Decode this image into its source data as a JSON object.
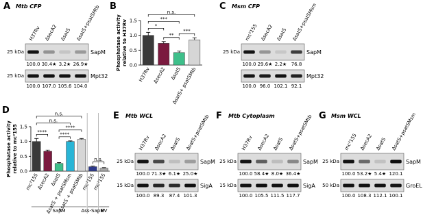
{
  "chart_data": [
    {
      "type": "bar",
      "panel": "B",
      "ylabel": [
        "Phosphatase activity",
        "relative to H37Rv"
      ],
      "categories": [
        "H37Rv",
        "ΔsecA2",
        "ΔsatS",
        "ΔsatS+ psatSMtb"
      ],
      "values": [
        1.0,
        0.73,
        0.42,
        0.85
      ],
      "errors": [
        0.1,
        0.06,
        0.05,
        0.07
      ],
      "colors": [
        "#3a3a3a",
        "#7b1a3f",
        "#3ebf8a",
        "#d6d6d6"
      ],
      "ylim": [
        0,
        1.5
      ],
      "yticks": [
        {
          "value": 0,
          "label": "0.0"
        },
        {
          "value": 0.5,
          "label": "0.5"
        },
        {
          "value": 1,
          "label": "1.0"
        },
        {
          "value": 1.5,
          "label": "1.5"
        }
      ],
      "significance": [
        {
          "text": "n.s.",
          "between": [
            0,
            3
          ]
        },
        {
          "text": "***",
          "between": [
            0,
            2
          ]
        },
        {
          "text": "*",
          "between": [
            0,
            1
          ]
        },
        {
          "text": "**",
          "between": [
            1,
            2
          ]
        },
        {
          "text": "***",
          "between": [
            2,
            3
          ]
        }
      ]
    },
    {
      "type": "bar",
      "panel": "D",
      "ylabel": [
        "Phosphatase activity",
        "relative to mc²155"
      ],
      "categories": [
        "mc²155",
        "ΔsecA2",
        "ΔsatS",
        "ΔsatS + psatSMsm",
        "ΔsatS + psatSMtb",
        "mc²155",
        "mc²155"
      ],
      "values": [
        1.0,
        0.67,
        0.26,
        1.0,
        1.07,
        0.15,
        0.1
      ],
      "errors": [
        0.1,
        0.04,
        0.03,
        0.02,
        0.03,
        0.02,
        0.02
      ],
      "colors": [
        "#3a3a3a",
        "#7b1a3f",
        "#3ebf8a",
        "#29b5d6",
        "#d6d6d6",
        "#2e3a8c",
        "#a8a8a8"
      ],
      "ylim": [
        0,
        1.5
      ],
      "yticks": [
        {
          "value": 0,
          "label": "0.0"
        },
        {
          "value": 0.5,
          "label": "0.5"
        },
        {
          "value": 1,
          "label": "1.0"
        },
        {
          "value": 1.5,
          "label": "1.5"
        }
      ],
      "significance": [
        {
          "text": "n.s.",
          "between": [
            0,
            4
          ]
        },
        {
          "text": "n.s.",
          "between": [
            0,
            3
          ]
        },
        {
          "text": "****",
          "between": [
            0,
            1
          ]
        },
        {
          "text": "****",
          "between": [
            2,
            3
          ]
        },
        {
          "text": "****",
          "between": [
            2,
            4
          ]
        },
        {
          "text": "n.s.",
          "between": [
            5,
            6
          ]
        }
      ],
      "groups": [
        {
          "label": "SapM",
          "first": 0,
          "last": 4
        },
        {
          "label": "Δss-SapM",
          "first": 5,
          "last": 5
        },
        {
          "label": "EV",
          "first": 6,
          "last": 6
        }
      ]
    }
  ],
  "blots": [
    {
      "panel": "A",
      "title": "Mtb CFP",
      "lanes": [
        "H37Rv",
        "ΔsecA2",
        "ΔsatS",
        "ΔsatS+psatSMtb"
      ],
      "rows": [
        {
          "marker": "25 kDa",
          "protein": "SapM",
          "quant": [
            "100.0",
            "30.4★",
            "3.2★",
            "26.9★"
          ]
        },
        {
          "marker": "25 kDa",
          "protein": "Mpt32",
          "quant": [
            "100.0",
            "107.0",
            "105.6",
            "104.0"
          ]
        }
      ]
    },
    {
      "panel": "C",
      "title": "Msm CFP",
      "lanes": [
        "mc²155",
        "ΔsecA2",
        "ΔsatS",
        "ΔsatS+psatSMsm"
      ],
      "rows": [
        {
          "marker": "25 kDa",
          "protein": "SapM",
          "quant": [
            "100.0",
            "29.6★",
            "2.2★",
            "76.8"
          ]
        },
        {
          "marker": null,
          "protein": "Mpt32",
          "quant": [
            "100.0",
            "96.0",
            "102.1",
            "92.1"
          ]
        }
      ]
    },
    {
      "panel": "E",
      "title": "Mtb WCL",
      "lanes": [
        "H37Rv",
        "ΔsecA2",
        "ΔsatS",
        "ΔsatS+psatSMtb"
      ],
      "rows": [
        {
          "marker": "25 kDa",
          "protein": "SapM",
          "quant": [
            "100.0",
            "71.3★",
            "6.1★",
            "25.0★"
          ]
        },
        {
          "marker": "15 kDa",
          "protein": "SigA",
          "quant": [
            "100.0",
            "89.3",
            "87.4",
            "101.3"
          ]
        }
      ]
    },
    {
      "panel": "F",
      "title": "Mtb Cytoplasm",
      "lanes": [
        "H37Rv",
        "ΔsecA2",
        "ΔsatS",
        "ΔsatS+psatSMtb"
      ],
      "rows": [
        {
          "marker": "25 kDa",
          "protein": "SapM",
          "quant": [
            "100.0",
            "58.4★",
            "8.0★",
            "36.4★"
          ]
        },
        {
          "marker": "15 kDa",
          "protein": "SigA",
          "quant": [
            "100.0",
            "105.5",
            "111.5",
            "117.7"
          ]
        }
      ]
    },
    {
      "panel": "G",
      "title": "Msm WCL",
      "lanes": [
        "mc²155",
        "ΔsecA2",
        "ΔsatS",
        "ΔsatS+psatSMsm"
      ],
      "rows": [
        {
          "marker": "25 kDa",
          "protein": "SapM",
          "quant": [
            "100.0",
            "53.2★",
            "5.4★",
            "120.1"
          ]
        },
        {
          "marker": "50 kDa",
          "protein": "GroEL",
          "quant": [
            "100.0",
            "108.3",
            "112.1",
            "100.1"
          ]
        }
      ]
    }
  ]
}
